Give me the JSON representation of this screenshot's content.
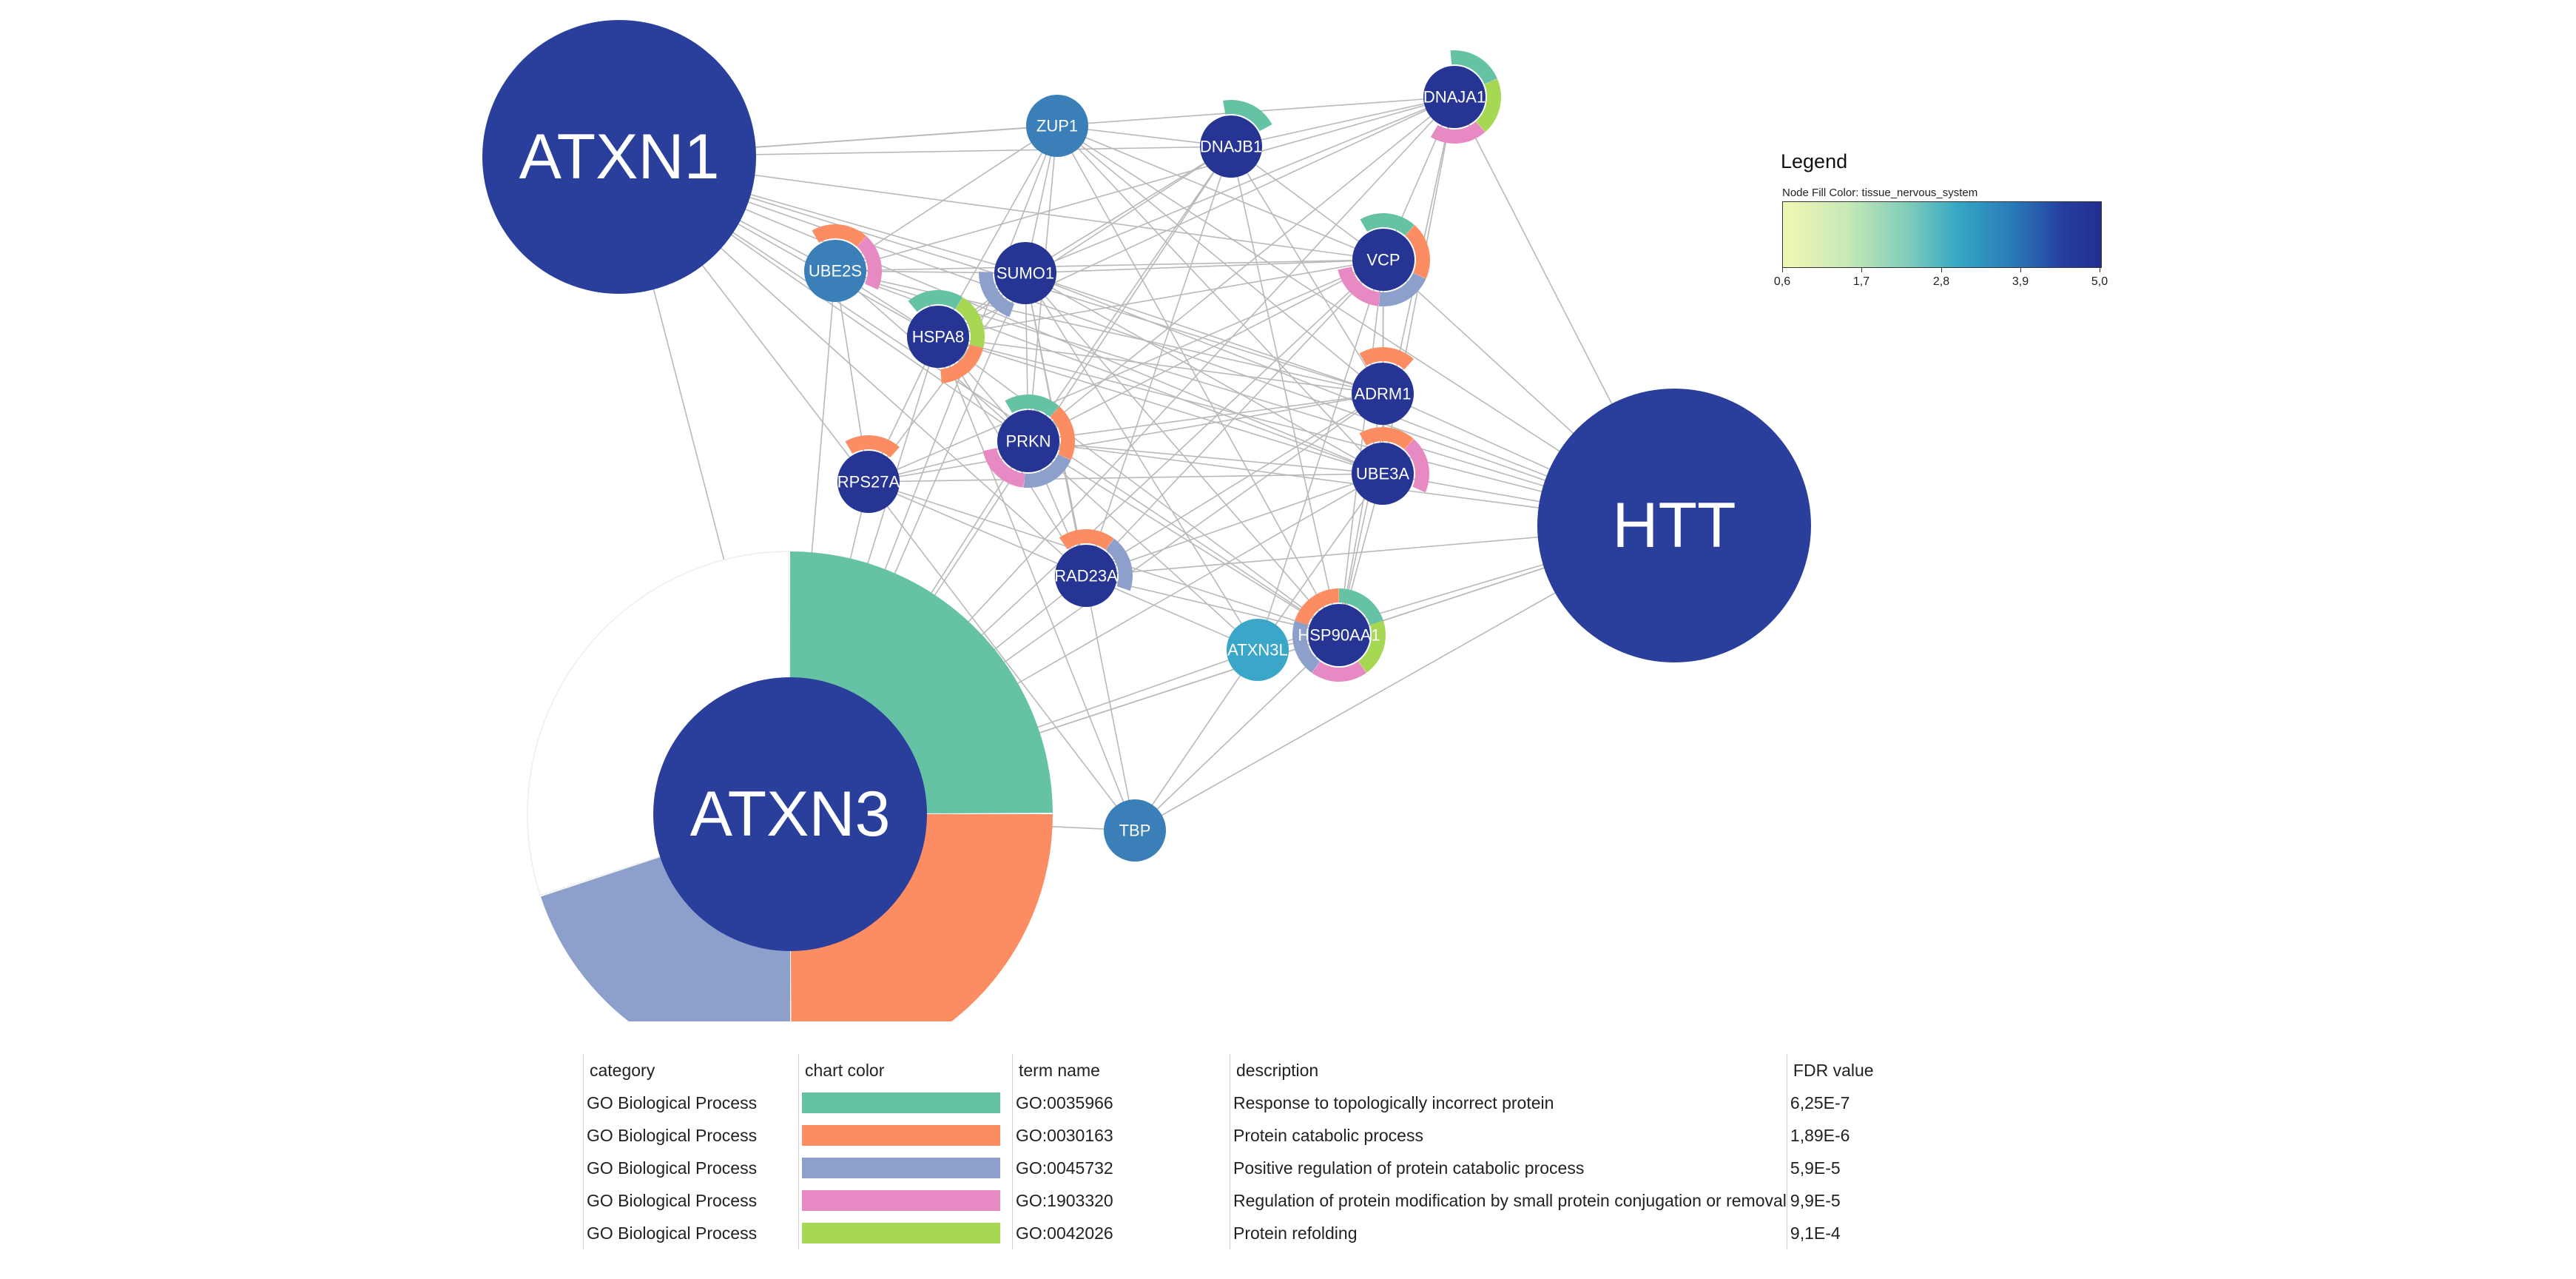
{
  "nodes": [
    {
      "id": "ATXN1",
      "label": "ATXN1",
      "fill": "#2a3f9c"
    },
    {
      "id": "HTT",
      "label": "HTT",
      "fill": "#2a3f9c"
    },
    {
      "id": "ATXN3",
      "label": "ATXN3",
      "fill": "#2a3f9c",
      "ring": [
        {
          "term": "GO:0035966",
          "frac": 0.25
        },
        {
          "term": "GO:0030163",
          "frac": 0.25
        },
        {
          "term": "GO:0045732",
          "frac": 0.2
        },
        {
          "term": "none",
          "frac": 0.3
        }
      ]
    },
    {
      "id": "ZUP1",
      "label": "ZUP1",
      "fill": "#3a7fb8"
    },
    {
      "id": "DNAJB1",
      "label": "DNAJB1",
      "fill": "#263594",
      "ring": [
        {
          "term": "GO:0035966",
          "frac": 0.2
        }
      ]
    },
    {
      "id": "DNAJA1",
      "label": "DNAJA1",
      "fill": "#263594",
      "ring": [
        {
          "term": "GO:0035966",
          "frac": 0.2
        },
        {
          "term": "GO:0042026",
          "frac": 0.2
        },
        {
          "term": "GO:1903320",
          "frac": 0.2
        }
      ]
    },
    {
      "id": "UBE2S",
      "label": "UBE2S",
      "fill": "#3a7fb8",
      "ring": [
        {
          "term": "GO:0030163",
          "frac": 0.2
        },
        {
          "term": "GO:1903320",
          "frac": 0.2
        }
      ]
    },
    {
      "id": "SUMO1",
      "label": "SUMO1",
      "fill": "#263594",
      "ring": [
        {
          "term": "GO:0045732",
          "frac": 0.2
        }
      ]
    },
    {
      "id": "VCP",
      "label": "VCP",
      "fill": "#263594",
      "ring": [
        {
          "term": "GO:0035966",
          "frac": 0.2
        },
        {
          "term": "GO:0030163",
          "frac": 0.2
        },
        {
          "term": "GO:0045732",
          "frac": 0.2
        },
        {
          "term": "GO:1903320",
          "frac": 0.2
        }
      ]
    },
    {
      "id": "HSPA8",
      "label": "HSPA8",
      "fill": "#263594",
      "ring": [
        {
          "term": "GO:0035966",
          "frac": 0.2
        },
        {
          "term": "GO:0042026",
          "frac": 0.2
        },
        {
          "term": "GO:0030163",
          "frac": 0.2
        }
      ]
    },
    {
      "id": "ADRM1",
      "label": "ADRM1",
      "fill": "#263594",
      "ring": [
        {
          "term": "GO:0030163",
          "frac": 0.2
        }
      ]
    },
    {
      "id": "PRKN",
      "label": "PRKN",
      "fill": "#263594",
      "ring": [
        {
          "term": "GO:0035966",
          "frac": 0.2
        },
        {
          "term": "GO:0030163",
          "frac": 0.2
        },
        {
          "term": "GO:0045732",
          "frac": 0.2
        },
        {
          "term": "GO:1903320",
          "frac": 0.2
        }
      ]
    },
    {
      "id": "UBE3A",
      "label": "UBE3A",
      "fill": "#263594",
      "ring": [
        {
          "term": "GO:0030163",
          "frac": 0.2
        },
        {
          "term": "GO:1903320",
          "frac": 0.2
        }
      ]
    },
    {
      "id": "RPS27A",
      "label": "RPS27A",
      "fill": "#263594",
      "ring": [
        {
          "term": "GO:0030163",
          "frac": 0.2
        }
      ]
    },
    {
      "id": "RAD23A",
      "label": "RAD23A",
      "fill": "#263594",
      "ring": [
        {
          "term": "GO:0030163",
          "frac": 0.2
        },
        {
          "term": "GO:0045732",
          "frac": 0.2
        }
      ]
    },
    {
      "id": "HSP90AA1",
      "label": "HSP90AA1",
      "fill": "#263594",
      "ring": [
        {
          "term": "GO:0035966",
          "frac": 0.2
        },
        {
          "term": "GO:0042026",
          "frac": 0.2
        },
        {
          "term": "GO:1903320",
          "frac": 0.2
        },
        {
          "term": "GO:0045732",
          "frac": 0.2
        },
        {
          "term": "GO:0030163",
          "frac": 0.2
        }
      ]
    },
    {
      "id": "ATXN3L",
      "label": "ATXN3L",
      "fill": "#3aa6c8"
    },
    {
      "id": "TBP",
      "label": "TBP",
      "fill": "#3a7fb8"
    }
  ],
  "edges": [
    [
      "ATXN1",
      "ZUP1"
    ],
    [
      "ATXN1",
      "DNAJB1"
    ],
    [
      "ATXN1",
      "DNAJA1"
    ],
    [
      "ATXN1",
      "UBE2S"
    ],
    [
      "ATXN1",
      "SUMO1"
    ],
    [
      "ATXN1",
      "HSPA8"
    ],
    [
      "ATXN1",
      "VCP"
    ],
    [
      "ATXN1",
      "PRKN"
    ],
    [
      "ATXN1",
      "ADRM1"
    ],
    [
      "ATXN1",
      "UBE3A"
    ],
    [
      "ATXN1",
      "RPS27A"
    ],
    [
      "ATXN1",
      "ATXN3"
    ],
    [
      "ATXN1",
      "HTT"
    ],
    [
      "ATXN1",
      "RAD23A"
    ],
    [
      "ATXN1",
      "HSP90AA1"
    ],
    [
      "HTT",
      "DNAJA1"
    ],
    [
      "HTT",
      "VCP"
    ],
    [
      "HTT",
      "ADRM1"
    ],
    [
      "HTT",
      "UBE3A"
    ],
    [
      "HTT",
      "HSP90AA1"
    ],
    [
      "HTT",
      "ATXN3"
    ],
    [
      "HTT",
      "PRKN"
    ],
    [
      "HTT",
      "ZUP1"
    ],
    [
      "HTT",
      "TBP"
    ],
    [
      "HTT",
      "ATXN3L"
    ],
    [
      "HTT",
      "RAD23A"
    ],
    [
      "HTT",
      "SUMO1"
    ],
    [
      "HTT",
      "HSPA8"
    ],
    [
      "HTT",
      "UBE2S"
    ],
    [
      "ATXN3",
      "HSPA8"
    ],
    [
      "ATXN3",
      "PRKN"
    ],
    [
      "ATXN3",
      "SUMO1"
    ],
    [
      "ATXN3",
      "VCP"
    ],
    [
      "ATXN3",
      "RAD23A"
    ],
    [
      "ATXN3",
      "HSP90AA1"
    ],
    [
      "ATXN3",
      "ATXN3L"
    ],
    [
      "ATXN3",
      "TBP"
    ],
    [
      "ATXN3",
      "UBE2S"
    ],
    [
      "ATXN3",
      "RPS27A"
    ],
    [
      "ATXN3",
      "DNAJA1"
    ],
    [
      "ATXN3",
      "DNAJB1"
    ],
    [
      "ATXN3",
      "ZUP1"
    ],
    [
      "ATXN3",
      "ADRM1"
    ],
    [
      "ATXN3",
      "UBE3A"
    ],
    [
      "ZUP1",
      "DNAJB1"
    ],
    [
      "ZUP1",
      "SUMO1"
    ],
    [
      "ZUP1",
      "PRKN"
    ],
    [
      "ZUP1",
      "VCP"
    ],
    [
      "ZUP1",
      "HSP90AA1"
    ],
    [
      "ZUP1",
      "UBE2S"
    ],
    [
      "ZUP1",
      "ADRM1"
    ],
    [
      "ZUP1",
      "UBE3A"
    ],
    [
      "ZUP1",
      "HSPA8"
    ],
    [
      "DNAJB1",
      "HSPA8"
    ],
    [
      "DNAJB1",
      "HSP90AA1"
    ],
    [
      "DNAJB1",
      "DNAJA1"
    ],
    [
      "DNAJB1",
      "PRKN"
    ],
    [
      "DNAJB1",
      "VCP"
    ],
    [
      "DNAJB1",
      "SUMO1"
    ],
    [
      "DNAJB1",
      "ADRM1"
    ],
    [
      "DNAJB1",
      "RAD23A"
    ],
    [
      "DNAJA1",
      "HSPA8"
    ],
    [
      "DNAJA1",
      "HSP90AA1"
    ],
    [
      "DNAJA1",
      "VCP"
    ],
    [
      "DNAJA1",
      "PRKN"
    ],
    [
      "DNAJA1",
      "SUMO1"
    ],
    [
      "DNAJA1",
      "UBE2S"
    ],
    [
      "DNAJA1",
      "UBE3A"
    ],
    [
      "UBE2S",
      "SUMO1"
    ],
    [
      "UBE2S",
      "PRKN"
    ],
    [
      "UBE2S",
      "VCP"
    ],
    [
      "UBE2S",
      "UBE3A"
    ],
    [
      "UBE2S",
      "RPS27A"
    ],
    [
      "UBE2S",
      "HSPA8"
    ],
    [
      "UBE2S",
      "ADRM1"
    ],
    [
      "SUMO1",
      "VCP"
    ],
    [
      "SUMO1",
      "PRKN"
    ],
    [
      "SUMO1",
      "UBE3A"
    ],
    [
      "SUMO1",
      "HSP90AA1"
    ],
    [
      "SUMO1",
      "RAD23A"
    ],
    [
      "SUMO1",
      "HSPA8"
    ],
    [
      "SUMO1",
      "ATXN3L"
    ],
    [
      "SUMO1",
      "RPS27A"
    ],
    [
      "SUMO1",
      "TBP"
    ],
    [
      "SUMO1",
      "ADRM1"
    ],
    [
      "VCP",
      "HSPA8"
    ],
    [
      "VCP",
      "PRKN"
    ],
    [
      "VCP",
      "ADRM1"
    ],
    [
      "VCP",
      "UBE3A"
    ],
    [
      "VCP",
      "RAD23A"
    ],
    [
      "VCP",
      "HSP90AA1"
    ],
    [
      "VCP",
      "RPS27A"
    ],
    [
      "VCP",
      "ATXN3L"
    ],
    [
      "HSPA8",
      "PRKN"
    ],
    [
      "HSPA8",
      "HSP90AA1"
    ],
    [
      "HSPA8",
      "UBE3A"
    ],
    [
      "HSPA8",
      "RAD23A"
    ],
    [
      "HSPA8",
      "RPS27A"
    ],
    [
      "HSPA8",
      "TBP"
    ],
    [
      "HSPA8",
      "ADRM1"
    ],
    [
      "ADRM1",
      "RAD23A"
    ],
    [
      "ADRM1",
      "UBE3A"
    ],
    [
      "ADRM1",
      "PRKN"
    ],
    [
      "ADRM1",
      "HSP90AA1"
    ],
    [
      "ADRM1",
      "RPS27A"
    ],
    [
      "PRKN",
      "UBE3A"
    ],
    [
      "PRKN",
      "RAD23A"
    ],
    [
      "PRKN",
      "HSP90AA1"
    ],
    [
      "PRKN",
      "RPS27A"
    ],
    [
      "PRKN",
      "ATXN3L"
    ],
    [
      "UBE3A",
      "RAD23A"
    ],
    [
      "UBE3A",
      "HSP90AA1"
    ],
    [
      "UBE3A",
      "RPS27A"
    ],
    [
      "UBE3A",
      "ATXN3L"
    ],
    [
      "RPS27A",
      "RAD23A"
    ],
    [
      "RPS27A",
      "HSP90AA1"
    ],
    [
      "RPS27A",
      "TBP"
    ],
    [
      "RAD23A",
      "HSP90AA1"
    ],
    [
      "RAD23A",
      "ATXN3L"
    ],
    [
      "HSP90AA1",
      "ATXN3L"
    ],
    [
      "HSP90AA1",
      "TBP"
    ],
    [
      "ATXN3L",
      "TBP"
    ]
  ],
  "term_colors": {
    "GO:0035966": "#66c2a5",
    "GO:0030163": "#fc8d62",
    "GO:0045732": "#8da0cb",
    "GO:1903320": "#e78ac3",
    "GO:0042026": "#a6d854",
    "none": "#f4f4f4"
  },
  "legend": {
    "title": "Legend",
    "subtitle": "Node Fill Color:  tissue_nervous_system",
    "ticks": [
      "0,6",
      "1,7",
      "2,8",
      "3,9",
      "5,0"
    ]
  },
  "table": {
    "headers": [
      "category",
      "chart color",
      "term name",
      "description",
      "FDR value"
    ],
    "rows": [
      {
        "category": "GO Biological Process",
        "color": "#66c2a5",
        "term": "GO:0035966",
        "description": "Response to topologically incorrect protein",
        "fdr": "6,25E-7"
      },
      {
        "category": "GO Biological Process",
        "color": "#fc8d62",
        "term": "GO:0030163",
        "description": "Protein catabolic process",
        "fdr": "1,89E-6"
      },
      {
        "category": "GO Biological Process",
        "color": "#8da0cb",
        "term": "GO:0045732",
        "description": "Positive regulation of protein catabolic process",
        "fdr": "5,9E-5"
      },
      {
        "category": "GO Biological Process",
        "color": "#e78ac3",
        "term": "GO:1903320",
        "description": "Regulation of protein modification by small protein conjugation or removal",
        "fdr": "9,9E-5"
      },
      {
        "category": "GO Biological Process",
        "color": "#a6d854",
        "term": "GO:0042026",
        "description": "Protein refolding",
        "fdr": "9,1E-4"
      }
    ]
  }
}
